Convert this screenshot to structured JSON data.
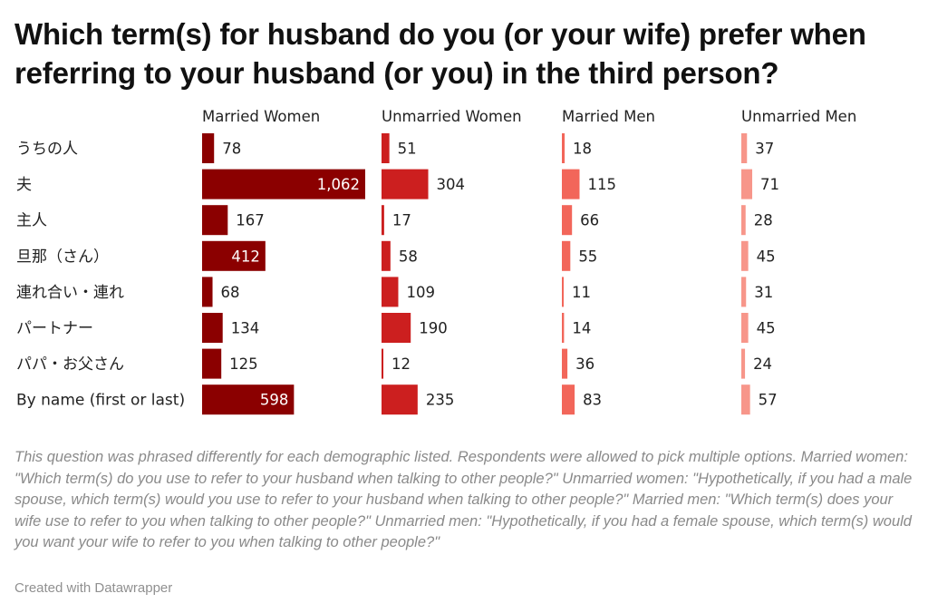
{
  "title": "Which term(s) for husband do you (or your wife) prefer when referring to your husband (or you) in the third person?",
  "notes": "This question was phrased differently for each demographic listed. Respondents were allowed to pick multiple options. Married women: \"Which term(s) do you use to refer to your husband when talking to other people?\" Unmarried women: \"Hypothetically, if you had a male spouse, which term(s) would you use to refer to your husband when talking to other people?\" Married men: \"Which term(s) does your wife use to refer to you when talking to other people?\" Unmarried men: \"Hypothetically, if you had a female spouse, which term(s) would you want your wife to refer to you when talking to other people?\"",
  "credit": "Created with Datawrapper",
  "chart_data": {
    "type": "bar",
    "orientation": "horizontal",
    "layout": "small-multiples",
    "categories": [
      "うちの人",
      "夫",
      "主人",
      "旦那（さん）",
      "連れ合い・連れ",
      "パートナー",
      "パパ・お父さん",
      "By name (first or last)"
    ],
    "series": [
      {
        "name": "Married Women",
        "color": "#8b0000",
        "values": [
          78,
          1062,
          167,
          412,
          68,
          134,
          125,
          598
        ]
      },
      {
        "name": "Unmarried Women",
        "color": "#cc1f1f",
        "values": [
          51,
          304,
          17,
          58,
          109,
          190,
          12,
          235
        ]
      },
      {
        "name": "Married Men",
        "color": "#f2665a",
        "values": [
          18,
          115,
          66,
          55,
          11,
          14,
          36,
          83
        ]
      },
      {
        "name": "Unmarried Men",
        "color": "#f7968a",
        "values": [
          37,
          71,
          28,
          45,
          31,
          45,
          24,
          57
        ]
      }
    ],
    "xlim": [
      0,
      1062
    ],
    "grid": false,
    "legend": "none"
  }
}
